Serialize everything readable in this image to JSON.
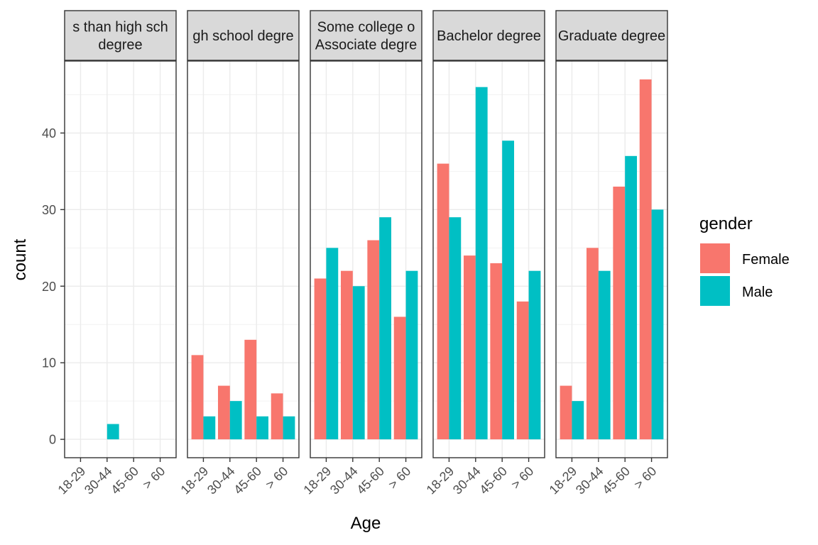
{
  "chart_data": {
    "type": "bar",
    "facet_titles": [
      [
        "s than high sch",
        "degree"
      ],
      [
        "gh school degre"
      ],
      [
        "Some college o",
        "Associate degre"
      ],
      [
        "Bachelor degree"
      ],
      [
        "Graduate degree"
      ]
    ],
    "categories": [
      "18-29",
      "30-44",
      "45-60",
      "> 60"
    ],
    "series": [
      {
        "name": "Female",
        "color": "#F8766D"
      },
      {
        "name": "Male",
        "color": "#00BFC4"
      }
    ],
    "values": [
      {
        "Female": [
          0,
          0,
          0,
          0
        ],
        "Male": [
          0,
          2,
          0,
          0
        ]
      },
      {
        "Female": [
          11,
          7,
          13,
          6
        ],
        "Male": [
          3,
          5,
          3,
          3
        ]
      },
      {
        "Female": [
          21,
          22,
          26,
          16
        ],
        "Male": [
          25,
          20,
          29,
          22
        ]
      },
      {
        "Female": [
          36,
          24,
          23,
          18
        ],
        "Male": [
          29,
          46,
          39,
          22
        ]
      },
      {
        "Female": [
          7,
          25,
          33,
          47
        ],
        "Male": [
          5,
          22,
          37,
          30
        ]
      }
    ],
    "xlabel": "Age",
    "ylabel": "count",
    "ylim": [
      -2.4,
      49.4
    ],
    "yticks": [
      0,
      10,
      20,
      30,
      40
    ],
    "legend_title": "gender",
    "legend_position": "right",
    "grid": true
  }
}
